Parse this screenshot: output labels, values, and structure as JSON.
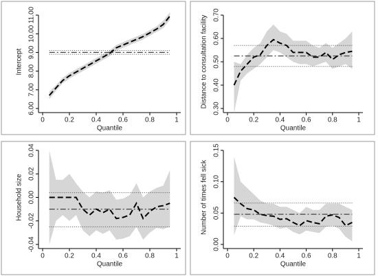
{
  "chart_data": [
    {
      "type": "line",
      "xlabel": "Quantile",
      "ylabel": "Intercept",
      "x": [
        0.05,
        0.1,
        0.15,
        0.2,
        0.25,
        0.3,
        0.35,
        0.4,
        0.45,
        0.5,
        0.55,
        0.6,
        0.65,
        0.7,
        0.75,
        0.8,
        0.85,
        0.9,
        0.95
      ],
      "estimate": [
        6.7,
        7.1,
        7.5,
        7.75,
        7.95,
        8.15,
        8.35,
        8.55,
        8.75,
        8.95,
        9.25,
        9.4,
        9.55,
        9.7,
        9.85,
        10.05,
        10.25,
        10.5,
        10.95
      ],
      "ci_lower": [
        6.5,
        6.95,
        7.35,
        7.6,
        7.8,
        8.0,
        8.2,
        8.4,
        8.6,
        8.8,
        9.1,
        9.25,
        9.4,
        9.55,
        9.7,
        9.9,
        10.1,
        10.3,
        10.75
      ],
      "ci_upper": [
        6.9,
        7.25,
        7.65,
        7.9,
        8.1,
        8.3,
        8.5,
        8.7,
        8.9,
        9.1,
        9.4,
        9.55,
        9.7,
        9.85,
        10.0,
        10.2,
        10.4,
        10.7,
        11.15
      ],
      "ols": {
        "estimate": 9.0,
        "ci_lower": 8.9,
        "ci_upper": 9.1
      },
      "xlim": [
        0,
        1
      ],
      "xticks": [
        0,
        0.2,
        0.4,
        0.6,
        0.8,
        1
      ],
      "ylim": [
        6,
        11
      ],
      "yticks": [
        {
          "value": 6,
          "label": "6.00"
        },
        {
          "value": 7,
          "label": "7.00"
        },
        {
          "value": 8,
          "label": "8.00"
        },
        {
          "value": 9,
          "label": "9.00"
        },
        {
          "value": 10,
          "label": "10.00"
        },
        {
          "value": 11,
          "label": "11.00"
        }
      ]
    },
    {
      "type": "line",
      "xlabel": "Quantile",
      "ylabel": "Distance to consultation facility",
      "x": [
        0.05,
        0.1,
        0.15,
        0.2,
        0.25,
        0.3,
        0.35,
        0.4,
        0.45,
        0.5,
        0.55,
        0.6,
        0.65,
        0.7,
        0.75,
        0.8,
        0.85,
        0.9,
        0.95
      ],
      "estimate": [
        0.4,
        0.46,
        0.49,
        0.52,
        0.53,
        0.57,
        0.595,
        0.58,
        0.57,
        0.54,
        0.54,
        0.54,
        0.52,
        0.52,
        0.54,
        0.51,
        0.53,
        0.54,
        0.545
      ],
      "ci_lower": [
        0.28,
        0.42,
        0.45,
        0.47,
        0.49,
        0.52,
        0.55,
        0.54,
        0.52,
        0.5,
        0.49,
        0.49,
        0.48,
        0.49,
        0.5,
        0.47,
        0.48,
        0.49,
        0.47
      ],
      "ci_upper": [
        0.5,
        0.49,
        0.53,
        0.56,
        0.58,
        0.63,
        0.66,
        0.63,
        0.62,
        0.59,
        0.59,
        0.59,
        0.57,
        0.56,
        0.58,
        0.56,
        0.58,
        0.6,
        0.63
      ],
      "ols": {
        "estimate": 0.525,
        "ci_lower": 0.48,
        "ci_upper": 0.57
      },
      "xlim": [
        0,
        1
      ],
      "xticks": [
        0,
        0.2,
        0.4,
        0.6,
        0.8,
        1
      ],
      "ylim": [
        0.3,
        0.7
      ],
      "yticks": [
        {
          "value": 0.3,
          "label": "0.30"
        },
        {
          "value": 0.4,
          "label": "0.40"
        },
        {
          "value": 0.5,
          "label": "0.50"
        },
        {
          "value": 0.6,
          "label": "0.60"
        },
        {
          "value": 0.7,
          "label": "0.70"
        }
      ]
    },
    {
      "type": "line",
      "xlabel": "Quantile",
      "ylabel": "Household size",
      "x": [
        0.05,
        0.1,
        0.15,
        0.2,
        0.25,
        0.3,
        0.35,
        0.4,
        0.45,
        0.5,
        0.55,
        0.6,
        0.65,
        0.7,
        0.75,
        0.8,
        0.85,
        0.9,
        0.95
      ],
      "estimate": [
        0,
        0,
        0,
        0,
        0,
        -0.01,
        -0.015,
        -0.01,
        -0.013,
        -0.01,
        -0.018,
        -0.017,
        -0.015,
        -0.005,
        -0.018,
        -0.012,
        -0.008,
        -0.007,
        -0.005
      ],
      "ci_lower": [
        -0.04,
        -0.02,
        -0.015,
        -0.02,
        -0.015,
        -0.028,
        -0.033,
        -0.028,
        -0.031,
        -0.028,
        -0.036,
        -0.035,
        -0.033,
        -0.025,
        -0.036,
        -0.03,
        -0.026,
        -0.027,
        -0.025
      ],
      "ci_upper": [
        0.04,
        0.015,
        0.015,
        0.02,
        0.012,
        0.005,
        0.0,
        0.005,
        0.004,
        0.006,
        -0.002,
        -0.001,
        0.002,
        0.012,
        0.0,
        0.005,
        0.008,
        0.01,
        0.023
      ],
      "ols": {
        "estimate": -0.01,
        "ci_lower": -0.025,
        "ci_upper": 0.004
      },
      "xlim": [
        0,
        1
      ],
      "xticks": [
        0,
        0.2,
        0.4,
        0.6,
        0.8,
        1
      ],
      "ylim": [
        -0.04,
        0.04
      ],
      "yticks": [
        {
          "value": -0.04,
          "label": "-0.04"
        },
        {
          "value": -0.02,
          "label": "-0.02"
        },
        {
          "value": 0,
          "label": "0.00"
        },
        {
          "value": 0.02,
          "label": "0.02"
        },
        {
          "value": 0.04,
          "label": "0.04"
        }
      ]
    },
    {
      "type": "line",
      "xlabel": "Quantile",
      "ylabel": "Number of times fell sick",
      "x": [
        0.05,
        0.1,
        0.15,
        0.2,
        0.25,
        0.3,
        0.35,
        0.4,
        0.45,
        0.5,
        0.55,
        0.6,
        0.65,
        0.7,
        0.75,
        0.8,
        0.85,
        0.9,
        0.95
      ],
      "estimate": [
        0.075,
        0.065,
        0.057,
        0.055,
        0.048,
        0.046,
        0.045,
        0.04,
        0.041,
        0.035,
        0.03,
        0.038,
        0.035,
        0.033,
        0.045,
        0.047,
        0.043,
        0.03,
        0.035
      ],
      "ci_lower": [
        0.015,
        0.045,
        0.04,
        0.04,
        0.035,
        0.033,
        0.03,
        0.025,
        0.027,
        0.02,
        0.016,
        0.022,
        0.02,
        0.018,
        0.028,
        0.03,
        0.025,
        0.012,
        0.005
      ],
      "ci_upper": [
        0.14,
        0.1,
        0.09,
        0.08,
        0.07,
        0.065,
        0.065,
        0.06,
        0.06,
        0.055,
        0.05,
        0.06,
        0.055,
        0.055,
        0.065,
        0.065,
        0.065,
        0.06,
        0.055
      ],
      "ols": {
        "estimate": 0.048,
        "ci_lower": 0.029,
        "ci_upper": 0.066
      },
      "xlim": [
        0,
        1
      ],
      "xticks": [
        0,
        0.2,
        0.4,
        0.6,
        0.8,
        1
      ],
      "ylim": [
        0,
        0.15
      ],
      "yticks": [
        {
          "value": 0,
          "label": "0.00"
        },
        {
          "value": 0.05,
          "label": "0.05"
        },
        {
          "value": 0.1,
          "label": "0.10"
        },
        {
          "value": 0.15,
          "label": "0.15"
        }
      ]
    }
  ]
}
